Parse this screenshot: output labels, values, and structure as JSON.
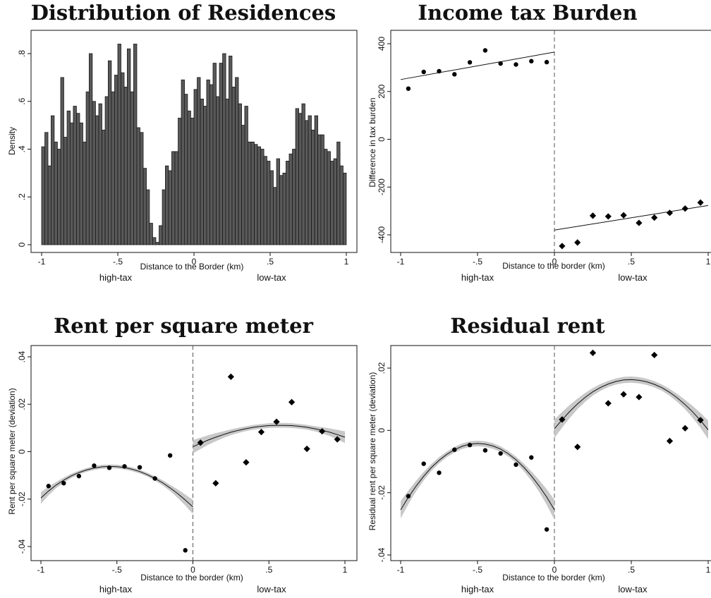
{
  "chart_data": [
    {
      "type": "bar",
      "title": "Distribution of Residences",
      "xlabel": "Distance to the Border (km)",
      "ylabel": "Density",
      "xlim": [
        -1,
        1
      ],
      "ylim": [
        0,
        0.85
      ],
      "xticks": [
        "-1",
        "-.5",
        "0",
        ".5",
        "1"
      ],
      "xtick_values": [
        -1,
        -0.5,
        0,
        0.5,
        1
      ],
      "yticks": [
        "0",
        ".2",
        ".4",
        ".6",
        ".8"
      ],
      "ytick_values": [
        0,
        0.2,
        0.4,
        0.6,
        0.8
      ],
      "side_labels": {
        "left": "high-tax",
        "right": "low-tax"
      },
      "bar_color": "#595959",
      "bin_width": 0.0208,
      "bin_starts": [
        -1.0,
        -0.979,
        -0.958,
        -0.938,
        -0.917,
        -0.896,
        -0.875,
        -0.854,
        -0.833,
        -0.813,
        -0.792,
        -0.771,
        -0.75,
        -0.729,
        -0.708,
        -0.688,
        -0.667,
        -0.646,
        -0.625,
        -0.604,
        -0.583,
        -0.563,
        -0.542,
        -0.521,
        -0.5,
        -0.479,
        -0.458,
        -0.438,
        -0.417,
        -0.396,
        -0.375,
        -0.354,
        -0.333,
        -0.313,
        -0.292,
        -0.271,
        -0.25,
        -0.229,
        -0.208,
        -0.188,
        -0.167,
        -0.146,
        -0.125,
        -0.104,
        -0.083,
        -0.063,
        -0.042,
        -0.021,
        0.0,
        0.021,
        0.042,
        0.063,
        0.083,
        0.104,
        0.125,
        0.146,
        0.167,
        0.188,
        0.208,
        0.229,
        0.25,
        0.271,
        0.292,
        0.313,
        0.333,
        0.354,
        0.375,
        0.396,
        0.417,
        0.438,
        0.458,
        0.479,
        0.5,
        0.521,
        0.542,
        0.563,
        0.583,
        0.604,
        0.625,
        0.646,
        0.667,
        0.688,
        0.708,
        0.729,
        0.75,
        0.771,
        0.792,
        0.813,
        0.833,
        0.854,
        0.875,
        0.896,
        0.917,
        0.938,
        0.958,
        0.979
      ],
      "values": [
        0.41,
        0.47,
        0.33,
        0.54,
        0.43,
        0.4,
        0.7,
        0.45,
        0.56,
        0.51,
        0.58,
        0.55,
        0.51,
        0.43,
        0.64,
        0.8,
        0.6,
        0.54,
        0.59,
        0.48,
        0.62,
        0.77,
        0.64,
        0.71,
        0.84,
        0.72,
        0.66,
        0.82,
        0.64,
        0.84,
        0.49,
        0.47,
        0.32,
        0.23,
        0.09,
        0.03,
        0.01,
        0.08,
        0.23,
        0.33,
        0.31,
        0.39,
        0.39,
        0.53,
        0.69,
        0.63,
        0.56,
        0.53,
        0.65,
        0.7,
        0.61,
        0.58,
        0.69,
        0.67,
        0.76,
        0.62,
        0.76,
        0.8,
        0.61,
        0.79,
        0.66,
        0.7,
        0.59,
        0.5,
        0.58,
        0.43,
        0.43,
        0.42,
        0.41,
        0.4,
        0.37,
        0.35,
        0.31,
        0.24,
        0.36,
        0.29,
        0.3,
        0.35,
        0.38,
        0.4,
        0.57,
        0.55,
        0.59,
        0.52,
        0.54,
        0.48,
        0.54,
        0.46,
        0.46,
        0.4,
        0.39,
        0.35,
        0.36,
        0.43,
        0.33,
        0.3
      ]
    },
    {
      "type": "scatter",
      "title": "Income tax Burden",
      "xlabel": "Distance to the border (km)",
      "ylabel": "Difference in tax burden",
      "xlim": [
        -1,
        1
      ],
      "ylim": [
        -460,
        420
      ],
      "xticks": [
        "-1",
        "-.5",
        "0",
        ".5",
        "1"
      ],
      "xtick_values": [
        -1,
        -0.5,
        0,
        0.5,
        1
      ],
      "yticks": [
        "-400",
        "-200",
        "0",
        "200",
        "400"
      ],
      "ytick_values": [
        -400,
        -200,
        0,
        200,
        400
      ],
      "cutoff": 0,
      "side_labels": {
        "left": "high-tax",
        "right": "low-tax"
      },
      "series": [
        {
          "marker": "circle",
          "x": [
            -0.95,
            -0.85,
            -0.75,
            -0.65,
            -0.55,
            -0.45,
            -0.35,
            -0.25,
            -0.15,
            -0.05
          ],
          "y": [
            212,
            282,
            285,
            272,
            322,
            372,
            317,
            313,
            327,
            323
          ],
          "fit": {
            "type": "linear",
            "x": [
              -1,
              0
            ],
            "y": [
              250,
              365
            ]
          }
        },
        {
          "marker": "diamond",
          "x": [
            0.05,
            0.15,
            0.25,
            0.35,
            0.45,
            0.55,
            0.65,
            0.75,
            0.85,
            0.95
          ],
          "y": [
            -447,
            -432,
            -320,
            -323,
            -318,
            -350,
            -328,
            -308,
            -290,
            -265
          ],
          "fit": {
            "type": "linear",
            "x": [
              0,
              1
            ],
            "y": [
              -380,
              -277
            ]
          }
        }
      ]
    },
    {
      "type": "scatter",
      "title": "Rent per square meter",
      "xlabel": "Distance to the border (km)",
      "ylabel": "Rent per square meter (deviation)",
      "xlim": [
        -1,
        1
      ],
      "ylim": [
        -0.043,
        0.042
      ],
      "xticks": [
        "-1",
        "-.5",
        "0",
        ".5",
        "1"
      ],
      "xtick_values": [
        -1,
        -0.5,
        0,
        0.5,
        1
      ],
      "yticks": [
        "-.04",
        "-.02",
        "0",
        ".02",
        ".04"
      ],
      "ytick_values": [
        -0.04,
        -0.02,
        0,
        0.02,
        0.04
      ],
      "cutoff": 0,
      "side_labels": {
        "left": "high-tax",
        "right": "low-tax"
      },
      "series": [
        {
          "marker": "circle",
          "x": [
            -0.95,
            -0.85,
            -0.75,
            -0.65,
            -0.55,
            -0.45,
            -0.35,
            -0.25,
            -0.15,
            -0.05
          ],
          "y": [
            -0.0145,
            -0.0133,
            -0.0103,
            -0.0059,
            -0.0068,
            -0.0062,
            -0.0066,
            -0.0113,
            -0.0016,
            -0.0416
          ],
          "fit": {
            "type": "quadratic",
            "x": [
              -1.0,
              -0.95,
              -0.9,
              -0.85,
              -0.8,
              -0.75,
              -0.7,
              -0.65,
              -0.6,
              -0.55,
              -0.5,
              -0.45,
              -0.4,
              -0.35,
              -0.3,
              -0.25,
              -0.2,
              -0.15,
              -0.1,
              -0.05,
              0.0
            ],
            "y": [
              -0.0195,
              -0.0166,
              -0.0141,
              -0.012,
              -0.0102,
              -0.0088,
              -0.0077,
              -0.0069,
              -0.0064,
              -0.0062,
              -0.0063,
              -0.0067,
              -0.0074,
              -0.0084,
              -0.0097,
              -0.0113,
              -0.0131,
              -0.0153,
              -0.0177,
              -0.0204,
              -0.0233
            ],
            "ci_halfwidth": [
              0.0025,
              0.0018,
              0.0013,
              0.0011,
              0.0009,
              0.0008,
              0.0008,
              0.0008,
              0.0008,
              0.0008,
              0.0008,
              0.0008,
              0.0008,
              0.0008,
              0.0008,
              0.0009,
              0.0011,
              0.0013,
              0.0018,
              0.0023,
              0.003
            ]
          }
        },
        {
          "marker": "diamond",
          "x": [
            0.05,
            0.15,
            0.25,
            0.35,
            0.45,
            0.55,
            0.65,
            0.75,
            0.85,
            0.95
          ],
          "y": [
            0.0038,
            -0.0133,
            0.0316,
            -0.0045,
            0.0083,
            0.0126,
            0.0209,
            0.0012,
            0.0086,
            0.0052
          ],
          "fit": {
            "type": "quadratic",
            "x": [
              0.0,
              0.05,
              0.1,
              0.15,
              0.2,
              0.25,
              0.3,
              0.35,
              0.4,
              0.45,
              0.5,
              0.55,
              0.6,
              0.65,
              0.7,
              0.75,
              0.8,
              0.85,
              0.9,
              0.95,
              1.0
            ],
            "y": [
              0.0021,
              0.0035,
              0.0049,
              0.0061,
              0.0072,
              0.0082,
              0.009,
              0.0097,
              0.0103,
              0.0107,
              0.011,
              0.0111,
              0.0111,
              0.011,
              0.0107,
              0.0103,
              0.0097,
              0.009,
              0.0082,
              0.0072,
              0.0061
            ],
            "ci_halfwidth": [
              0.0028,
              0.0024,
              0.002,
              0.0017,
              0.0014,
              0.0012,
              0.0011,
              0.001,
              0.001,
              0.001,
              0.001,
              0.001,
              0.001,
              0.001,
              0.001,
              0.001,
              0.0011,
              0.0013,
              0.0016,
              0.002,
              0.0025
            ]
          }
        }
      ]
    },
    {
      "type": "scatter",
      "title": "Residual rent",
      "xlabel": "Distance to the border (km)",
      "ylabel": "Residual rent per square meter (deviation)",
      "xlim": [
        -1,
        1
      ],
      "ylim": [
        -0.042,
        0.027
      ],
      "xticks": [
        "-1",
        "-.5",
        "0",
        ".5",
        "1"
      ],
      "xtick_values": [
        -1,
        -0.5,
        0,
        0.5,
        1
      ],
      "yticks": [
        "-.04",
        "-.02",
        "0",
        ".02"
      ],
      "ytick_values": [
        -0.04,
        -0.02,
        0,
        0.02
      ],
      "cutoff": 0,
      "side_labels": {
        "left": "high-tax",
        "right": "low-tax"
      },
      "series": [
        {
          "marker": "circle",
          "x": [
            -0.95,
            -0.85,
            -0.75,
            -0.65,
            -0.55,
            -0.45,
            -0.35,
            -0.25,
            -0.15,
            -0.05
          ],
          "y": [
            -0.0211,
            -0.0107,
            -0.0136,
            -0.0062,
            -0.0047,
            -0.0064,
            -0.0074,
            -0.011,
            -0.0087,
            -0.0318
          ],
          "fit": {
            "type": "quadratic",
            "x": [
              -1.0,
              -0.95,
              -0.9,
              -0.85,
              -0.8,
              -0.75,
              -0.7,
              -0.65,
              -0.6,
              -0.55,
              -0.5,
              -0.45,
              -0.4,
              -0.35,
              -0.3,
              -0.25,
              -0.2,
              -0.15,
              -0.1,
              -0.05,
              0.0
            ],
            "y": [
              -0.0255,
              -0.0215,
              -0.0179,
              -0.0147,
              -0.0119,
              -0.0096,
              -0.0077,
              -0.0062,
              -0.0051,
              -0.0044,
              -0.0042,
              -0.0044,
              -0.005,
              -0.006,
              -0.0075,
              -0.0094,
              -0.0118,
              -0.0146,
              -0.0178,
              -0.0214,
              -0.0255
            ],
            "ci_halfwidth": [
              0.0028,
              0.0022,
              0.0017,
              0.0014,
              0.0011,
              0.001,
              0.0009,
              0.0009,
              0.0009,
              0.0009,
              0.0009,
              0.0009,
              0.0009,
              0.0009,
              0.0009,
              0.001,
              0.0012,
              0.0015,
              0.0019,
              0.0025,
              0.0032
            ]
          }
        },
        {
          "marker": "diamond",
          "x": [
            0.05,
            0.15,
            0.25,
            0.35,
            0.45,
            0.55,
            0.65,
            0.75,
            0.85,
            0.95
          ],
          "y": [
            0.0035,
            -0.0053,
            0.0249,
            0.0087,
            0.0116,
            0.0107,
            0.0242,
            -0.0034,
            0.0007,
            0.0033
          ],
          "fit": {
            "type": "quadratic",
            "x": [
              0.0,
              0.05,
              0.1,
              0.15,
              0.2,
              0.25,
              0.3,
              0.35,
              0.4,
              0.45,
              0.5,
              0.55,
              0.6,
              0.65,
              0.7,
              0.75,
              0.8,
              0.85,
              0.9,
              0.95,
              1.0
            ],
            "y": [
              0.0005,
              0.0034,
              0.0061,
              0.0085,
              0.0106,
              0.0124,
              0.0138,
              0.0149,
              0.0157,
              0.0162,
              0.0163,
              0.0161,
              0.0156,
              0.0148,
              0.0137,
              0.0122,
              0.0104,
              0.0083,
              0.0059,
              0.0032,
              0.0002
            ],
            "ci_halfwidth": [
              0.003,
              0.0025,
              0.0021,
              0.0017,
              0.0014,
              0.0012,
              0.0011,
              0.001,
              0.001,
              0.001,
              0.001,
              0.001,
              0.001,
              0.001,
              0.001,
              0.0011,
              0.0013,
              0.0015,
              0.0019,
              0.0024,
              0.003
            ]
          }
        }
      ]
    }
  ]
}
